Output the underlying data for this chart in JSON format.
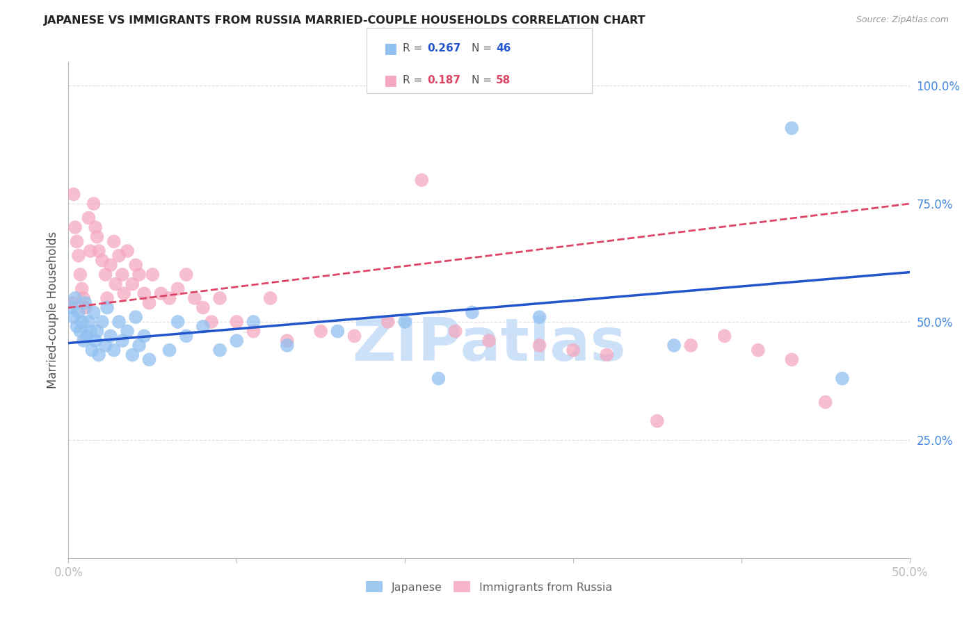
{
  "title": "JAPANESE VS IMMIGRANTS FROM RUSSIA MARRIED-COUPLE HOUSEHOLDS CORRELATION CHART",
  "source": "Source: ZipAtlas.com",
  "ylabel": "Married-couple Households",
  "xlim": [
    0.0,
    0.5
  ],
  "ylim": [
    0.0,
    1.05
  ],
  "xticks": [
    0.0,
    0.1,
    0.2,
    0.3,
    0.4,
    0.5
  ],
  "xticklabels": [
    "0.0%",
    "",
    "",
    "",
    "",
    "50.0%"
  ],
  "yticks_right": [
    0.25,
    0.5,
    0.75,
    1.0
  ],
  "yticklabels_right": [
    "25.0%",
    "50.0%",
    "75.0%",
    "100.0%"
  ],
  "blue_color": "#90c0f0",
  "pink_color": "#f5a8c0",
  "trendline_blue_color": "#2255cc",
  "trendline_pink_color": "#dd4466",
  "axis_color": "#bbbbbb",
  "grid_color": "#dddddd",
  "tick_color": "#4488dd",
  "watermark_color": "#cce0f8",
  "watermark_text": "ZIPatlas",
  "japanese_x": [
    0.002,
    0.003,
    0.004,
    0.005,
    0.006,
    0.007,
    0.008,
    0.009,
    0.01,
    0.011,
    0.012,
    0.013,
    0.014,
    0.015,
    0.016,
    0.017,
    0.018,
    0.02,
    0.022,
    0.023,
    0.025,
    0.027,
    0.03,
    0.032,
    0.035,
    0.038,
    0.04,
    0.042,
    0.045,
    0.048,
    0.06,
    0.065,
    0.07,
    0.08,
    0.09,
    0.1,
    0.11,
    0.13,
    0.16,
    0.2,
    0.22,
    0.24,
    0.28,
    0.36,
    0.43,
    0.46
  ],
  "japanese_y": [
    0.53,
    0.51,
    0.55,
    0.49,
    0.52,
    0.48,
    0.5,
    0.46,
    0.54,
    0.47,
    0.5,
    0.48,
    0.44,
    0.52,
    0.46,
    0.48,
    0.43,
    0.5,
    0.45,
    0.53,
    0.47,
    0.44,
    0.5,
    0.46,
    0.48,
    0.43,
    0.51,
    0.45,
    0.47,
    0.42,
    0.44,
    0.5,
    0.47,
    0.49,
    0.44,
    0.46,
    0.5,
    0.45,
    0.48,
    0.5,
    0.38,
    0.52,
    0.51,
    0.45,
    0.91,
    0.38
  ],
  "russia_x": [
    0.002,
    0.003,
    0.004,
    0.005,
    0.006,
    0.007,
    0.008,
    0.009,
    0.01,
    0.012,
    0.013,
    0.015,
    0.016,
    0.017,
    0.018,
    0.02,
    0.022,
    0.023,
    0.025,
    0.027,
    0.028,
    0.03,
    0.032,
    0.033,
    0.035,
    0.038,
    0.04,
    0.042,
    0.045,
    0.048,
    0.05,
    0.055,
    0.06,
    0.065,
    0.07,
    0.075,
    0.08,
    0.085,
    0.09,
    0.1,
    0.11,
    0.12,
    0.13,
    0.15,
    0.17,
    0.19,
    0.21,
    0.23,
    0.25,
    0.28,
    0.3,
    0.32,
    0.35,
    0.37,
    0.39,
    0.41,
    0.43,
    0.45
  ],
  "russia_y": [
    0.54,
    0.77,
    0.7,
    0.67,
    0.64,
    0.6,
    0.57,
    0.55,
    0.53,
    0.72,
    0.65,
    0.75,
    0.7,
    0.68,
    0.65,
    0.63,
    0.6,
    0.55,
    0.62,
    0.67,
    0.58,
    0.64,
    0.6,
    0.56,
    0.65,
    0.58,
    0.62,
    0.6,
    0.56,
    0.54,
    0.6,
    0.56,
    0.55,
    0.57,
    0.6,
    0.55,
    0.53,
    0.5,
    0.55,
    0.5,
    0.48,
    0.55,
    0.46,
    0.48,
    0.47,
    0.5,
    0.8,
    0.48,
    0.46,
    0.45,
    0.44,
    0.43,
    0.29,
    0.45,
    0.47,
    0.44,
    0.42,
    0.33
  ],
  "blue_R": "0.267",
  "blue_N": "46",
  "pink_R": "0.187",
  "pink_N": "58"
}
